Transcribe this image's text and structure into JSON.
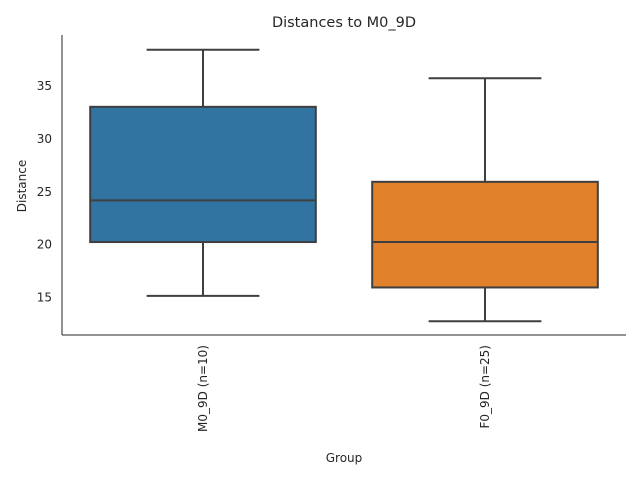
{
  "chart_data": {
    "type": "box",
    "title": "Distances to M0_9D",
    "xlabel": "Group",
    "ylabel": "Distance",
    "categories": [
      "M0_9D (n=10)",
      "F0_9D (n=25)"
    ],
    "boxes": [
      {
        "whisker_low": 15.1,
        "q1": 20.2,
        "median": 24.15,
        "q3": 33.0,
        "whisker_high": 38.4,
        "color": "#3274a1"
      },
      {
        "whisker_low": 12.7,
        "q1": 15.9,
        "median": 20.2,
        "q3": 25.9,
        "whisker_high": 35.7,
        "color": "#e1812c"
      }
    ],
    "yticks": [
      15,
      20,
      25,
      30,
      35
    ],
    "ylim": [
      11.4,
      39.8
    ],
    "grid": false
  }
}
